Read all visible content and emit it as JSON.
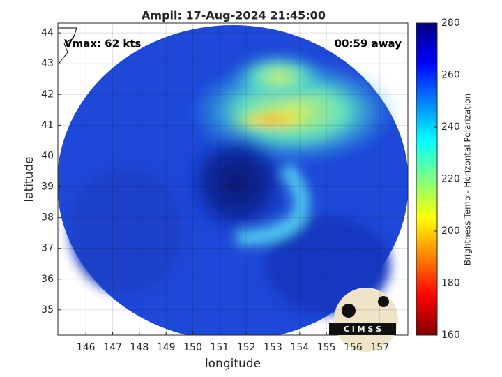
{
  "chart_data": {
    "type": "image",
    "title": "Ampil: 17-Aug-2024 21:45:00",
    "annotations": [
      "Vmax: 62 kts",
      "00:59 away"
    ],
    "x_label": "longitude",
    "y_label": "latitude",
    "xlim": [
      144.95,
      158.05
    ],
    "xticks": [
      146,
      147,
      148,
      149,
      150,
      151,
      152,
      153,
      154,
      155,
      156,
      157
    ],
    "ylim": [
      34.18,
      44.32
    ],
    "yticks": [
      35,
      36,
      37,
      38,
      39,
      40,
      41,
      42,
      43,
      44
    ],
    "grid": true,
    "colorbar": {
      "label": "Brightness Temp - Horizontal Polarization",
      "lim": [
        160,
        280
      ],
      "ticks": [
        160,
        180,
        200,
        220,
        240,
        260,
        280
      ],
      "colormap": [
        "#800000",
        "#ff0000",
        "#ff8000",
        "#ffff00",
        "#80ff80",
        "#00ffff",
        "#0080ff",
        "#0000ff",
        "#000080"
      ]
    },
    "logo_text": "C I M S S"
  }
}
